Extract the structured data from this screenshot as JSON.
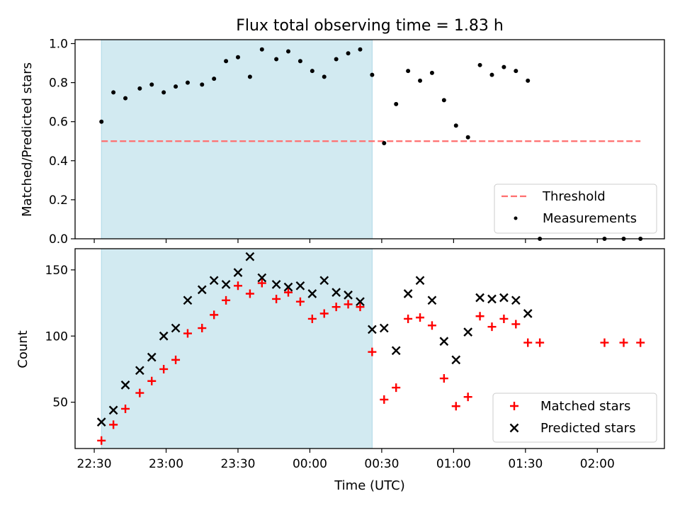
{
  "title": "Flux total observing time = 1.83 h",
  "colors": {
    "shade": "#add8e6",
    "threshold": "#ff6e6e",
    "matched": "#ff0000",
    "predicted": "#000000",
    "measurement": "#000000"
  },
  "chart_data": [
    {
      "type": "scatter",
      "panel": "top",
      "ylabel": "Matched/Predicted stars",
      "ylim": [
        0,
        1.02
      ],
      "yticks": [
        "0.0",
        "0.2",
        "0.4",
        "0.6",
        "0.8",
        "1.0"
      ],
      "ytick_values": [
        0,
        0.2,
        0.4,
        0.6,
        0.8,
        1.0
      ],
      "xlim": [
        "22:22",
        "02:28"
      ],
      "shaded_interval": [
        "22:33",
        "00:26"
      ],
      "threshold": {
        "name": "Threshold",
        "value": 0.5,
        "x_range": [
          "22:33",
          "02:18"
        ]
      },
      "legend_position": "lower right",
      "series": [
        {
          "name": "Measurements",
          "x": [
            "22:33",
            "22:38",
            "22:43",
            "22:49",
            "22:54",
            "22:59",
            "23:04",
            "23:09",
            "23:15",
            "23:20",
            "23:25",
            "23:30",
            "23:35",
            "23:40",
            "23:46",
            "23:51",
            "23:56",
            "00:01",
            "00:06",
            "00:11",
            "00:16",
            "00:21",
            "00:26",
            "00:31",
            "00:36",
            "00:41",
            "00:46",
            "00:51",
            "00:56",
            "01:01",
            "01:06",
            "01:11",
            "01:16",
            "01:21",
            "01:26",
            "01:31",
            "01:36",
            "02:03",
            "02:11",
            "02:18"
          ],
          "y": [
            0.6,
            0.75,
            0.72,
            0.77,
            0.79,
            0.75,
            0.78,
            0.8,
            0.79,
            0.82,
            0.91,
            0.93,
            0.83,
            0.97,
            0.92,
            0.96,
            0.91,
            0.86,
            0.83,
            0.92,
            0.95,
            0.97,
            0.84,
            0.49,
            0.69,
            0.86,
            0.81,
            0.85,
            0.71,
            0.58,
            0.52,
            0.89,
            0.84,
            0.88,
            0.86,
            0.81,
            0.0,
            0.0,
            0.0,
            0.0
          ]
        }
      ]
    },
    {
      "type": "scatter",
      "panel": "bottom",
      "ylabel": "Count",
      "xlabel": "Time (UTC)",
      "ylim": [
        15,
        166
      ],
      "yticks": [
        "50",
        "100",
        "150"
      ],
      "ytick_values": [
        50,
        100,
        150
      ],
      "xlim": [
        "22:22",
        "02:28"
      ],
      "xticks": [
        "22:30",
        "23:00",
        "23:30",
        "00:00",
        "00:30",
        "01:00",
        "01:30",
        "02:00"
      ],
      "shaded_interval": [
        "22:33",
        "00:26"
      ],
      "legend_position": "lower right",
      "series": [
        {
          "name": "Matched stars",
          "marker": "+",
          "x": [
            "22:33",
            "22:38",
            "22:43",
            "22:49",
            "22:54",
            "22:59",
            "23:04",
            "23:09",
            "23:15",
            "23:20",
            "23:25",
            "23:30",
            "23:35",
            "23:40",
            "23:46",
            "23:51",
            "23:56",
            "00:01",
            "00:06",
            "00:11",
            "00:16",
            "00:21",
            "00:26",
            "00:31",
            "00:36",
            "00:41",
            "00:46",
            "00:51",
            "00:56",
            "01:01",
            "01:06",
            "01:11",
            "01:16",
            "01:21",
            "01:26",
            "01:31",
            "01:36",
            "02:03",
            "02:11",
            "02:18"
          ],
          "y": [
            21,
            33,
            45,
            57,
            66,
            75,
            82,
            102,
            106,
            116,
            127,
            138,
            132,
            140,
            128,
            133,
            126,
            113,
            117,
            122,
            124,
            122,
            88,
            52,
            61,
            113,
            114,
            108,
            68,
            47,
            54,
            115,
            107,
            113,
            109,
            95,
            95,
            95,
            95,
            95
          ]
        },
        {
          "name": "Predicted stars",
          "marker": "x",
          "x": [
            "22:33",
            "22:38",
            "22:43",
            "22:49",
            "22:54",
            "22:59",
            "23:04",
            "23:09",
            "23:15",
            "23:20",
            "23:25",
            "23:30",
            "23:35",
            "23:40",
            "23:46",
            "23:51",
            "23:56",
            "00:01",
            "00:06",
            "00:11",
            "00:16",
            "00:21",
            "00:26",
            "00:31",
            "00:36",
            "00:41",
            "00:46",
            "00:51",
            "00:56",
            "01:01",
            "01:06",
            "01:11",
            "01:16",
            "01:21",
            "01:26",
            "01:31"
          ],
          "y": [
            35,
            44,
            63,
            74,
            84,
            100,
            106,
            127,
            135,
            142,
            139,
            148,
            160,
            144,
            139,
            137,
            138,
            132,
            142,
            133,
            131,
            126,
            105,
            106,
            89,
            132,
            142,
            127,
            96,
            82,
            103,
            129,
            128,
            129,
            127,
            117
          ]
        }
      ]
    }
  ]
}
